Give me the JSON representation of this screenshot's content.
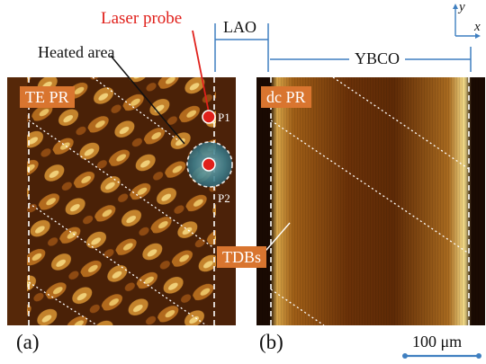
{
  "labels": {
    "laser_probe": "Laser probe",
    "heated_area": "Heated area",
    "lao": "LAO",
    "ybco": "YBCO",
    "te_pr": "TE PR",
    "dc_pr": "dc PR",
    "tdbs": "TDBs",
    "p1": "P1",
    "p2": "P2",
    "panel_a": "(a)",
    "panel_b": "(b)",
    "scale": "100 μm",
    "axis_x": "x",
    "axis_y": "y"
  },
  "colors": {
    "tag_bg": "#d9752f",
    "laser_red": "#e0201b",
    "scale_bar": "#3f7fc0",
    "map_dark": "#2a1203",
    "map_bright": "#f0d070"
  }
}
